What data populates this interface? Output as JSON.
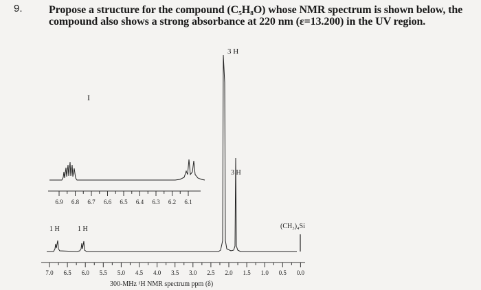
{
  "question": {
    "number": "9.",
    "line1": "Propose a structure for the compound (C₅H₈O) whose NMR spectrum is shown below, the",
    "line2": "compound also shows a strong absorbance at 220 nm (ε=13.200) in the UV region."
  },
  "spectrum": {
    "top_peak_label": "3 H",
    "mid_peak_label": "3 H",
    "roman_marker": "I",
    "left_peak_labels": [
      "1 H",
      "1 H"
    ],
    "tms_label": "(CH₃)₄Si",
    "inset_ticks": [
      "6.9",
      "6.8",
      "6.7",
      "6.6",
      "6.5",
      "6.4",
      "6.3",
      "6.2",
      "6.1"
    ],
    "main_ticks": [
      "7.0",
      "6.5",
      "6.0",
      "5.5",
      "5.0",
      "4.5",
      "4.0",
      "3.5",
      "3.0",
      "2.5",
      "2.0",
      "1.5",
      "1.0",
      "0.5",
      "0.0"
    ],
    "axis_caption": "300-MHz ¹H NMR spectrum ppm (δ)"
  }
}
